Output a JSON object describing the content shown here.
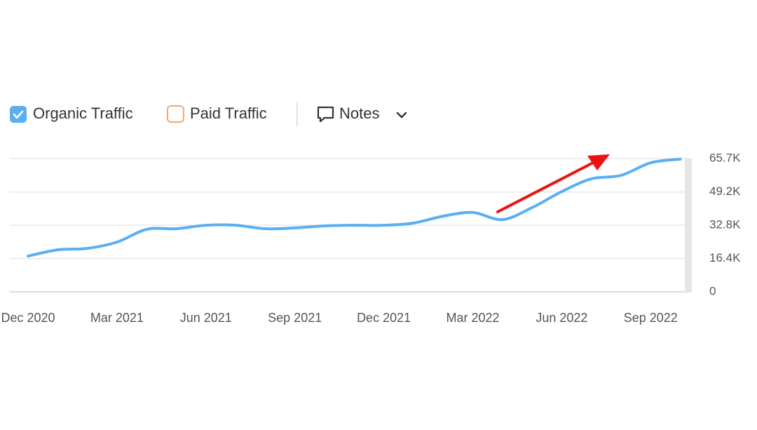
{
  "chart_data": {
    "type": "line",
    "categories": [
      "Dec 2020",
      null,
      null,
      "Mar 2021",
      null,
      null,
      "Jun 2021",
      null,
      null,
      "Sep 2021",
      null,
      null,
      "Dec 2021",
      null,
      null,
      "Mar 2022",
      null,
      null,
      "Jun 2022",
      null,
      null,
      "Sep 2022",
      null
    ],
    "series": [
      {
        "name": "Organic Traffic",
        "color": "#5aaef2",
        "checked": true,
        "values": [
          17600,
          20700,
          21400,
          24500,
          30800,
          31100,
          32800,
          32800,
          31100,
          31500,
          32500,
          32800,
          32800,
          33900,
          37300,
          39100,
          35600,
          41500,
          49400,
          55700,
          57400,
          63600,
          65400
        ]
      }
    ],
    "inactive_series": [
      {
        "name": "Paid Traffic",
        "color": "#f5a66e",
        "checked": false
      }
    ],
    "notes_label": "Notes",
    "ylim": [
      0,
      65700
    ],
    "yticks": [
      0,
      {
        "value": 16400,
        "label": "16.4K"
      },
      {
        "value": 32800,
        "label": "32.8K"
      },
      {
        "value": 49200,
        "label": "49.2K"
      },
      {
        "value": 65700,
        "label": "65.7K"
      }
    ],
    "grid": true
  }
}
